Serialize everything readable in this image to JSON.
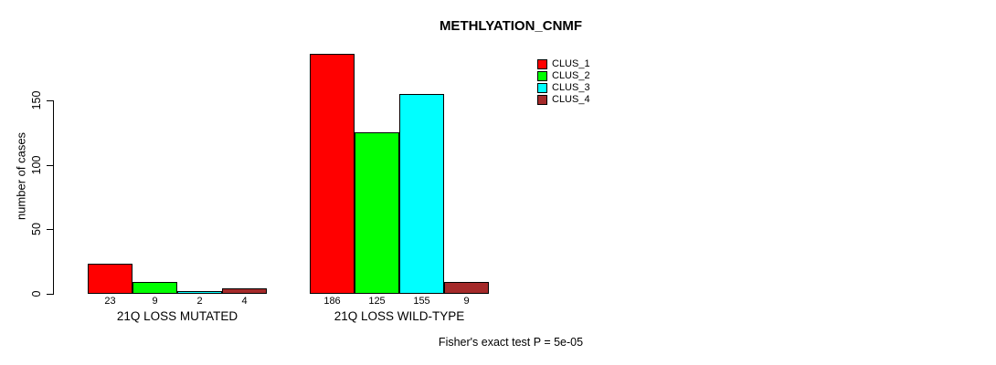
{
  "chart_data": {
    "type": "bar",
    "title": "METHLYATION_CNMF",
    "ylabel": "number of cases",
    "ylim": [
      0,
      150
    ],
    "yticks": [
      0,
      50,
      100,
      150
    ],
    "categories": [
      "21Q LOSS MUTATED",
      "21Q LOSS WILD-TYPE"
    ],
    "series": [
      {
        "name": "CLUS_1",
        "color": "#ff0000",
        "values": [
          23,
          186
        ]
      },
      {
        "name": "CLUS_2",
        "color": "#00ff00",
        "values": [
          9,
          125
        ]
      },
      {
        "name": "CLUS_3",
        "color": "#00ffff",
        "values": [
          2,
          155
        ]
      },
      {
        "name": "CLUS_4",
        "color": "#a52a2a",
        "values": [
          4,
          9
        ]
      }
    ],
    "bar_value_labels_shown": true,
    "legend_position": "top-right",
    "grid": false,
    "footnote": "Fisher's exact test P = 5e-05"
  }
}
